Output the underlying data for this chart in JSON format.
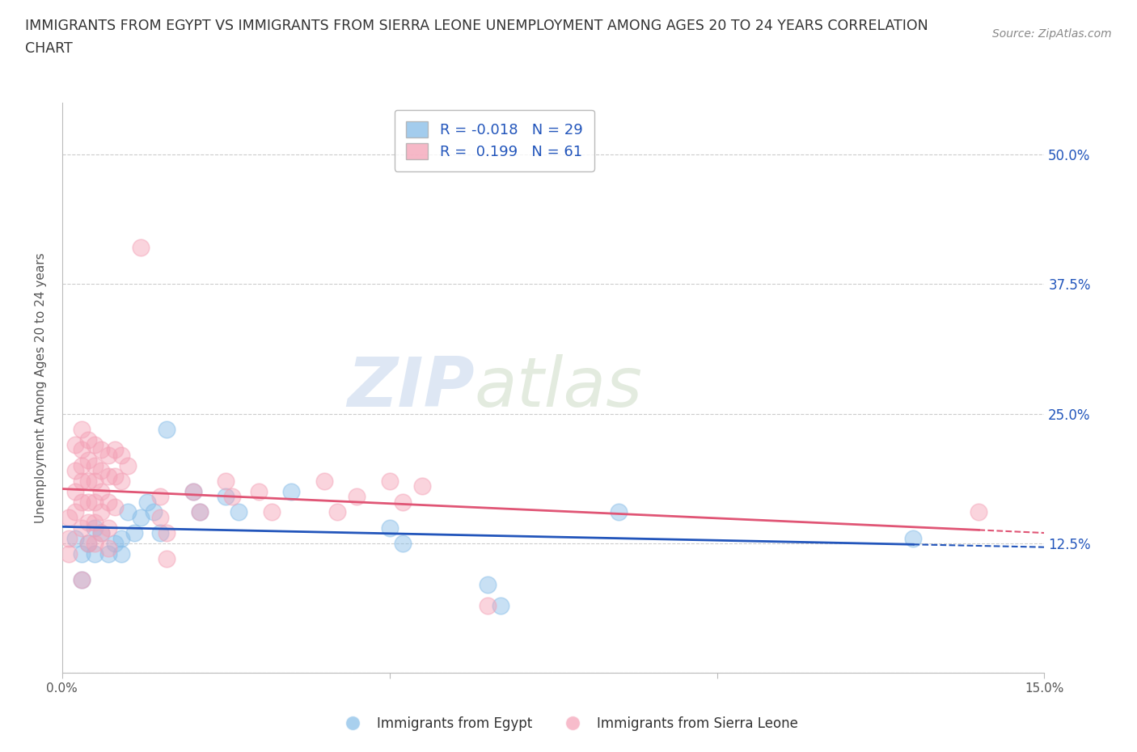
{
  "title_line1": "IMMIGRANTS FROM EGYPT VS IMMIGRANTS FROM SIERRA LEONE UNEMPLOYMENT AMONG AGES 20 TO 24 YEARS CORRELATION",
  "title_line2": "CHART",
  "source": "Source: ZipAtlas.com",
  "ylabel": "Unemployment Among Ages 20 to 24 years",
  "xlim": [
    0.0,
    0.15
  ],
  "ylim": [
    0.0,
    0.55
  ],
  "yticks": [
    0.0,
    0.125,
    0.25,
    0.375,
    0.5
  ],
  "ytick_labels": [
    "",
    "12.5%",
    "25.0%",
    "37.5%",
    "50.0%"
  ],
  "xticks": [
    0.0,
    0.05,
    0.1,
    0.15
  ],
  "xtick_labels": [
    "0.0%",
    "",
    "",
    "15.0%"
  ],
  "grid_color": "#cccccc",
  "background_color": "#ffffff",
  "egypt_color": "#85bce8",
  "sierra_leone_color": "#f4a0b5",
  "egypt_line_color": "#2255bb",
  "sierra_leone_line_color": "#e05575",
  "watermark_zip": "ZIP",
  "watermark_atlas": "atlas",
  "legend_egypt_label": "R = -0.018   N = 29",
  "legend_sierra_label": "R =  0.199   N = 61",
  "egypt_points": [
    [
      0.002,
      0.13
    ],
    [
      0.003,
      0.115
    ],
    [
      0.003,
      0.09
    ],
    [
      0.004,
      0.125
    ],
    [
      0.005,
      0.14
    ],
    [
      0.005,
      0.115
    ],
    [
      0.006,
      0.135
    ],
    [
      0.007,
      0.115
    ],
    [
      0.008,
      0.125
    ],
    [
      0.009,
      0.115
    ],
    [
      0.009,
      0.13
    ],
    [
      0.01,
      0.155
    ],
    [
      0.011,
      0.135
    ],
    [
      0.012,
      0.15
    ],
    [
      0.013,
      0.165
    ],
    [
      0.014,
      0.155
    ],
    [
      0.015,
      0.135
    ],
    [
      0.016,
      0.235
    ],
    [
      0.02,
      0.175
    ],
    [
      0.021,
      0.155
    ],
    [
      0.025,
      0.17
    ],
    [
      0.027,
      0.155
    ],
    [
      0.035,
      0.175
    ],
    [
      0.05,
      0.14
    ],
    [
      0.052,
      0.125
    ],
    [
      0.065,
      0.085
    ],
    [
      0.067,
      0.065
    ],
    [
      0.085,
      0.155
    ],
    [
      0.13,
      0.13
    ]
  ],
  "sierra_leone_points": [
    [
      0.001,
      0.15
    ],
    [
      0.001,
      0.13
    ],
    [
      0.001,
      0.115
    ],
    [
      0.002,
      0.22
    ],
    [
      0.002,
      0.195
    ],
    [
      0.002,
      0.175
    ],
    [
      0.002,
      0.155
    ],
    [
      0.003,
      0.235
    ],
    [
      0.003,
      0.215
    ],
    [
      0.003,
      0.2
    ],
    [
      0.003,
      0.185
    ],
    [
      0.003,
      0.165
    ],
    [
      0.003,
      0.14
    ],
    [
      0.003,
      0.09
    ],
    [
      0.004,
      0.225
    ],
    [
      0.004,
      0.205
    ],
    [
      0.004,
      0.185
    ],
    [
      0.004,
      0.165
    ],
    [
      0.004,
      0.145
    ],
    [
      0.004,
      0.125
    ],
    [
      0.005,
      0.22
    ],
    [
      0.005,
      0.2
    ],
    [
      0.005,
      0.185
    ],
    [
      0.005,
      0.165
    ],
    [
      0.005,
      0.145
    ],
    [
      0.005,
      0.125
    ],
    [
      0.006,
      0.215
    ],
    [
      0.006,
      0.195
    ],
    [
      0.006,
      0.175
    ],
    [
      0.006,
      0.155
    ],
    [
      0.006,
      0.135
    ],
    [
      0.007,
      0.21
    ],
    [
      0.007,
      0.19
    ],
    [
      0.007,
      0.165
    ],
    [
      0.007,
      0.14
    ],
    [
      0.007,
      0.12
    ],
    [
      0.008,
      0.215
    ],
    [
      0.008,
      0.19
    ],
    [
      0.008,
      0.16
    ],
    [
      0.009,
      0.21
    ],
    [
      0.009,
      0.185
    ],
    [
      0.01,
      0.2
    ],
    [
      0.012,
      0.41
    ],
    [
      0.015,
      0.17
    ],
    [
      0.015,
      0.15
    ],
    [
      0.016,
      0.135
    ],
    [
      0.016,
      0.11
    ],
    [
      0.02,
      0.175
    ],
    [
      0.021,
      0.155
    ],
    [
      0.025,
      0.185
    ],
    [
      0.026,
      0.17
    ],
    [
      0.03,
      0.175
    ],
    [
      0.032,
      0.155
    ],
    [
      0.04,
      0.185
    ],
    [
      0.042,
      0.155
    ],
    [
      0.045,
      0.17
    ],
    [
      0.05,
      0.185
    ],
    [
      0.052,
      0.165
    ],
    [
      0.055,
      0.18
    ],
    [
      0.065,
      0.065
    ],
    [
      0.14,
      0.155
    ]
  ]
}
